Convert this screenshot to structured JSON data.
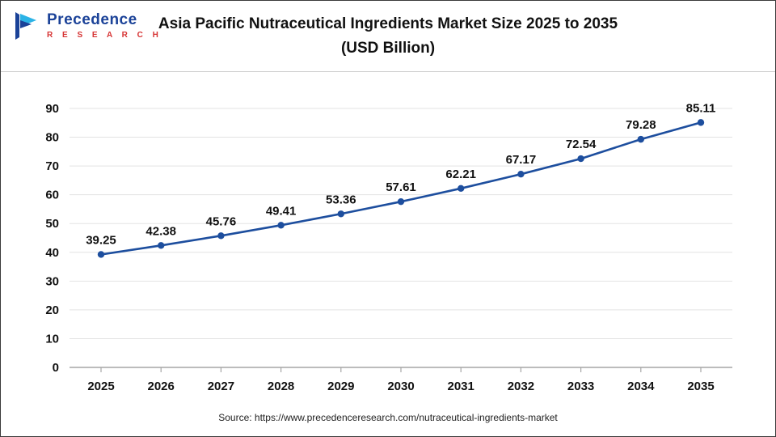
{
  "header": {
    "logo": {
      "line1": "Precedence",
      "line2": "R E S E A R C H"
    },
    "title_line1": "Asia Pacific Nutraceutical Ingredients Market Size 2025 to 2035",
    "title_line2": "(USD Billion)"
  },
  "footer": {
    "source": "Source: https://www.precedenceresearch.com/nutraceutical-ingredients-market"
  },
  "colors": {
    "line": "#1d4e9e",
    "marker": "#1d4e9e",
    "grid": "#e3e3e3",
    "axis": "#a6a6a6",
    "label": "#111111",
    "logo_blue": "#1b4298",
    "logo_light_blue": "#2bb3e6",
    "logo_red": "#d63333"
  },
  "chart_data": {
    "type": "line",
    "title": "Asia Pacific Nutraceutical Ingredients Market Size 2025 to 2035 (USD Billion)",
    "categories": [
      "2025",
      "2026",
      "2027",
      "2028",
      "2029",
      "2030",
      "2031",
      "2032",
      "2033",
      "2034",
      "2035"
    ],
    "values": [
      39.25,
      42.38,
      45.76,
      49.41,
      53.36,
      57.61,
      62.21,
      67.17,
      72.54,
      79.28,
      85.11
    ],
    "xlabel": "",
    "ylabel": "",
    "ylim": [
      0,
      90
    ],
    "yticks": [
      0,
      10,
      20,
      30,
      40,
      50,
      60,
      70,
      80,
      90
    ],
    "grid": true,
    "legend": "none",
    "data_labels": true
  }
}
